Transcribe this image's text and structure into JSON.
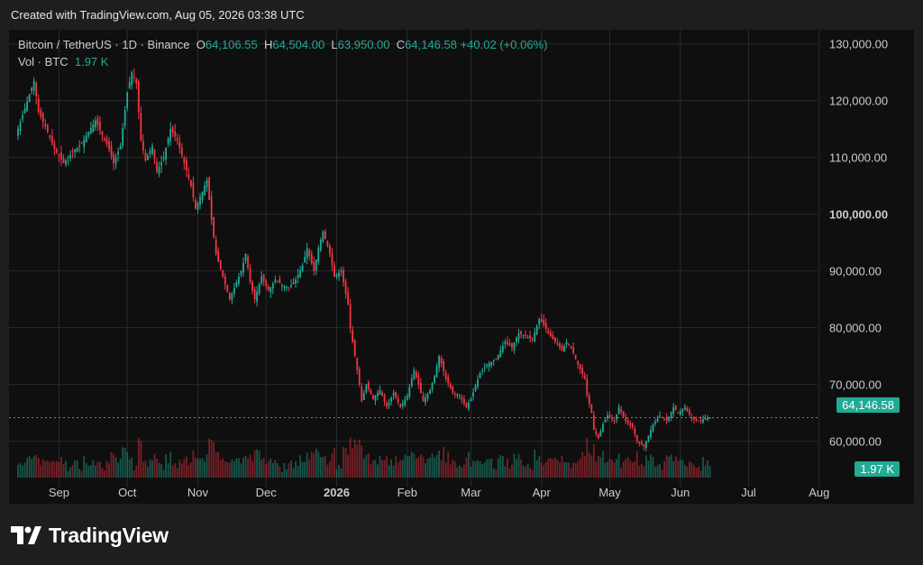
{
  "header": {
    "created": "Created with TradingView.com, Aug 05, 2026 03:38 UTC"
  },
  "legend": {
    "symbol": "Bitcoin / TetherUS · 1D · Binance",
    "o_label": "O",
    "o_value": "64,106.55",
    "h_label": "H",
    "h_value": "64,504.00",
    "l_label": "L",
    "l_value": "63,950.00",
    "c_label": "C",
    "c_value": "64,146.58",
    "change": "+40.02 (+0.06%)",
    "vol_label": "Vol · BTC",
    "vol_value": "1.97 K"
  },
  "price_tag": "64,146.58",
  "volume_tag": "1.97 K",
  "brand": {
    "name": "TradingView"
  },
  "colors": {
    "up": "#22ab94",
    "down": "#f23645",
    "grid": "#2a2a2e",
    "text": "#c9ccd1"
  },
  "chart_data": {
    "type": "candlestick",
    "y_ticks": [
      {
        "value": 60000,
        "label": "60,000.00"
      },
      {
        "value": 70000,
        "label": "70,000.00"
      },
      {
        "value": 80000,
        "label": "80,000.00"
      },
      {
        "value": 90000,
        "label": "90,000.00"
      },
      {
        "value": 100000,
        "label": "100,000.00",
        "bold": true
      },
      {
        "value": 110000,
        "label": "110,000.00"
      },
      {
        "value": 120000,
        "label": "120,000.00"
      },
      {
        "value": 130000,
        "label": "130,000.00"
      }
    ],
    "ylim": [
      52000,
      132500
    ],
    "x_range_days": [
      0,
      345
    ],
    "x_ticks": [
      {
        "day": 18,
        "label": "Sep"
      },
      {
        "day": 48,
        "label": "Oct"
      },
      {
        "day": 79,
        "label": "Nov"
      },
      {
        "day": 109,
        "label": "Dec"
      },
      {
        "day": 140,
        "label": "2026",
        "bold": true
      },
      {
        "day": 171,
        "label": "Feb"
      },
      {
        "day": 199,
        "label": "Mar"
      },
      {
        "day": 230,
        "label": "Apr"
      },
      {
        "day": 260,
        "label": "May"
      },
      {
        "day": 291,
        "label": "Jun"
      },
      {
        "day": 321,
        "label": "Jul"
      },
      {
        "day": 352,
        "label": "Aug"
      }
    ],
    "last_close": 64146.58,
    "close_path": [
      [
        0,
        115000
      ],
      [
        5,
        121000
      ],
      [
        7,
        123500
      ],
      [
        9,
        118000
      ],
      [
        12,
        115500
      ],
      [
        16,
        111500
      ],
      [
        20,
        109000
      ],
      [
        24,
        111000
      ],
      [
        28,
        112500
      ],
      [
        34,
        116500
      ],
      [
        37,
        114000
      ],
      [
        40,
        111500
      ],
      [
        42,
        109000
      ],
      [
        45,
        112000
      ],
      [
        48,
        121500
      ],
      [
        50,
        125000
      ],
      [
        52,
        123000
      ],
      [
        54,
        113000
      ],
      [
        56,
        109500
      ],
      [
        59,
        112000
      ],
      [
        61,
        107500
      ],
      [
        64,
        110000
      ],
      [
        67,
        115000
      ],
      [
        70,
        113000
      ],
      [
        73,
        109000
      ],
      [
        76,
        105000
      ],
      [
        78,
        101000
      ],
      [
        81,
        104000
      ],
      [
        83,
        106000
      ],
      [
        85,
        99000
      ],
      [
        87,
        93000
      ],
      [
        90,
        89000
      ],
      [
        93,
        85000
      ],
      [
        95,
        87000
      ],
      [
        98,
        90000
      ],
      [
        100,
        93000
      ],
      [
        102,
        88000
      ],
      [
        104,
        85000
      ],
      [
        107,
        89000
      ],
      [
        110,
        86500
      ],
      [
        113,
        88500
      ],
      [
        116,
        87500
      ],
      [
        119,
        87000
      ],
      [
        122,
        88500
      ],
      [
        125,
        91000
      ],
      [
        127,
        94000
      ],
      [
        130,
        90000
      ],
      [
        132,
        94000
      ],
      [
        134,
        97000
      ],
      [
        137,
        93000
      ],
      [
        139,
        89000
      ],
      [
        142,
        90000
      ],
      [
        144,
        86000
      ],
      [
        145,
        84000
      ],
      [
        146,
        80000
      ],
      [
        148,
        75000
      ],
      [
        150,
        70000
      ],
      [
        151,
        67000
      ],
      [
        153,
        70000
      ],
      [
        156,
        67500
      ],
      [
        159,
        69000
      ],
      [
        162,
        66000
      ],
      [
        165,
        68500
      ],
      [
        168,
        66000
      ],
      [
        171,
        68000
      ],
      [
        174,
        72500
      ],
      [
        176,
        70000
      ],
      [
        178,
        67000
      ],
      [
        181,
        69000
      ],
      [
        183,
        71500
      ],
      [
        185,
        75000
      ],
      [
        188,
        71000
      ],
      [
        191,
        68500
      ],
      [
        194,
        68000
      ],
      [
        197,
        66000
      ],
      [
        199,
        67500
      ],
      [
        203,
        72000
      ],
      [
        206,
        73500
      ],
      [
        210,
        74500
      ],
      [
        214,
        77500
      ],
      [
        217,
        76500
      ],
      [
        220,
        79000
      ],
      [
        223,
        78500
      ],
      [
        226,
        78000
      ],
      [
        229,
        81500
      ],
      [
        231,
        80500
      ],
      [
        233,
        79000
      ],
      [
        236,
        77500
      ],
      [
        239,
        76000
      ],
      [
        241,
        77500
      ],
      [
        243,
        76500
      ],
      [
        246,
        73500
      ],
      [
        249,
        71000
      ],
      [
        250,
        68000
      ],
      [
        252,
        65000
      ],
      [
        253,
        62000
      ],
      [
        255,
        60500
      ],
      [
        257,
        63000
      ],
      [
        259,
        64500
      ],
      [
        262,
        63500
      ],
      [
        264,
        66000
      ],
      [
        267,
        63500
      ],
      [
        270,
        62500
      ],
      [
        272,
        60000
      ],
      [
        275,
        59000
      ],
      [
        277,
        61000
      ],
      [
        279,
        63000
      ],
      [
        282,
        64500
      ],
      [
        285,
        63500
      ],
      [
        288,
        66000
      ],
      [
        290,
        65000
      ],
      [
        293,
        66000
      ],
      [
        296,
        64000
      ],
      [
        299,
        63500
      ],
      [
        302,
        64000
      ],
      [
        304,
        64146.58
      ]
    ]
  }
}
